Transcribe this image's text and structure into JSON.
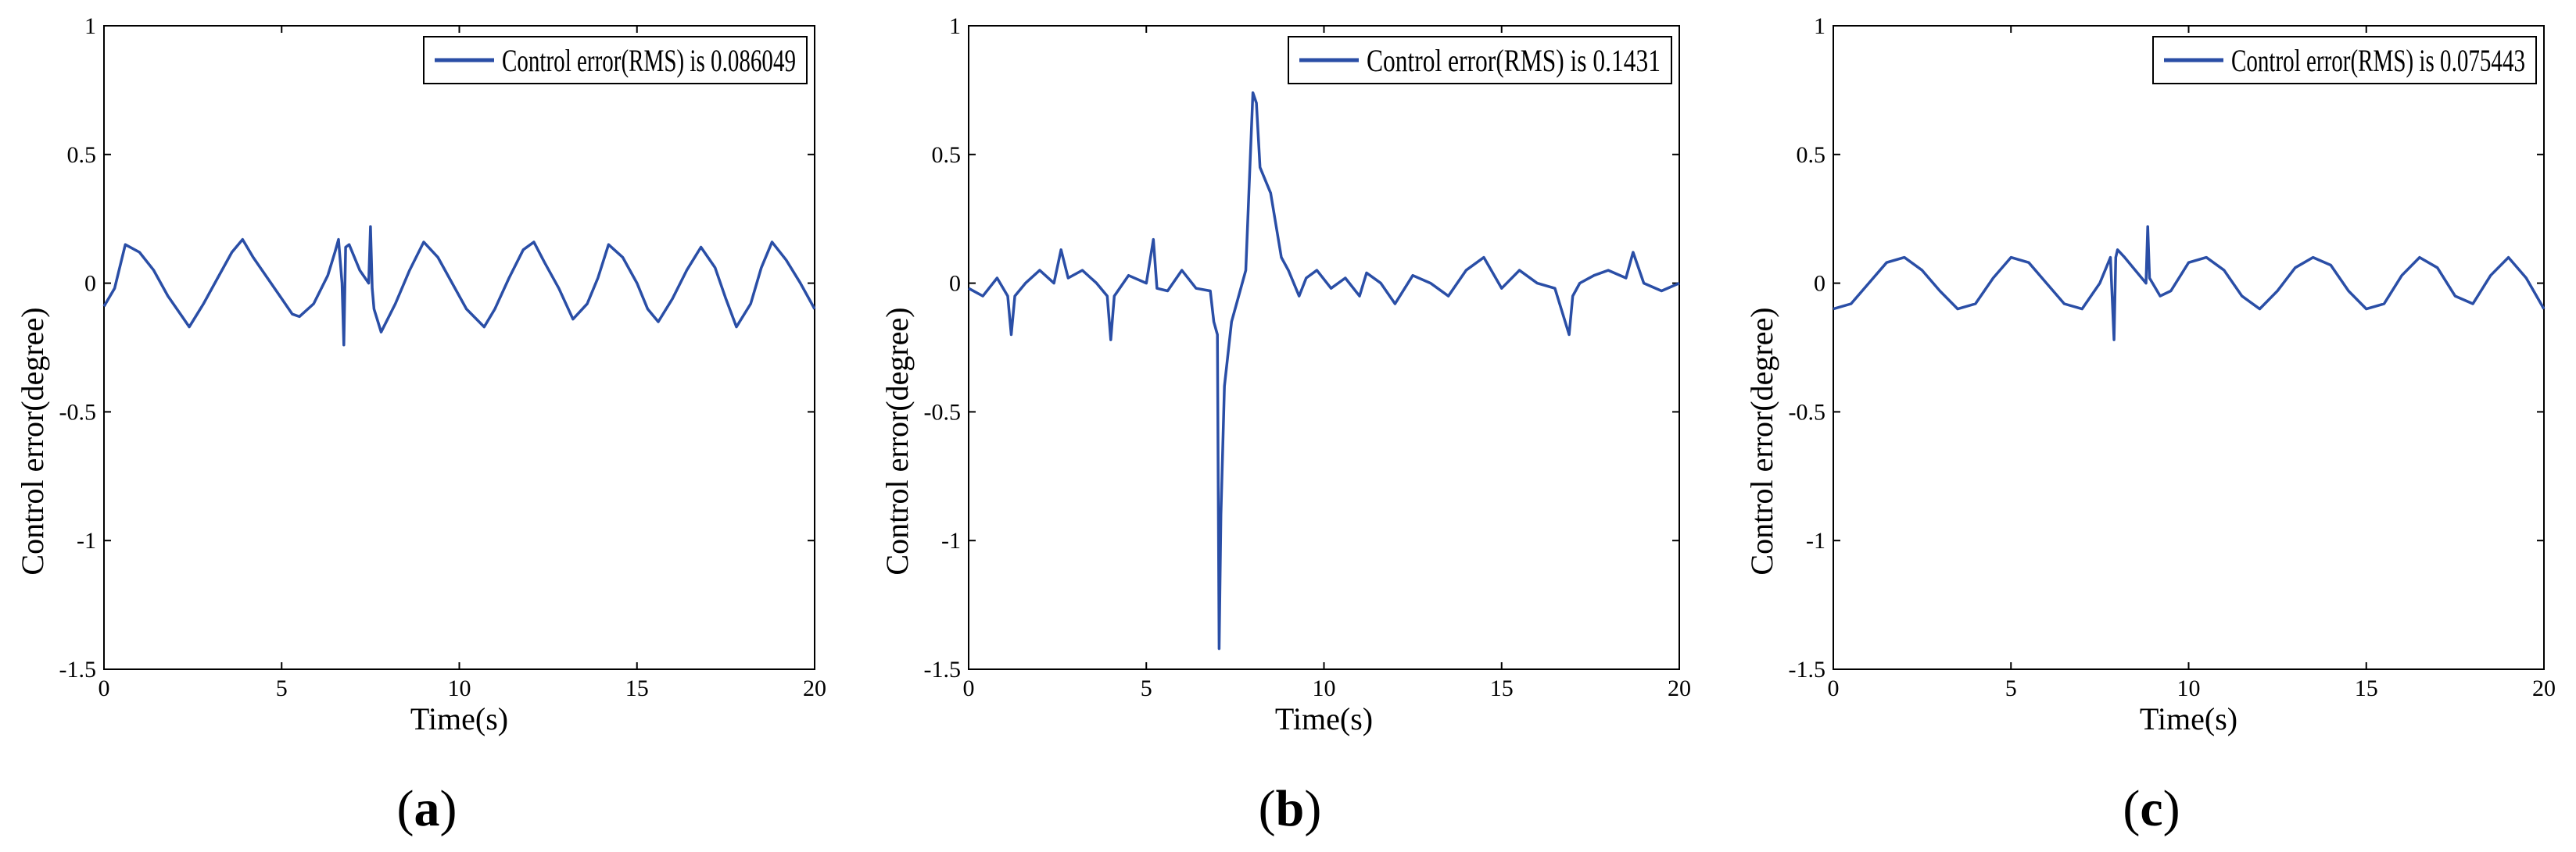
{
  "chart_data": [
    {
      "type": "line",
      "panel_label": "a",
      "xlabel": "Time(s)",
      "ylabel": "Control error(degree)",
      "xlim": [
        0,
        20
      ],
      "ylim": [
        -1.5,
        1
      ],
      "xticks": [
        "0",
        "5",
        "10",
        "15",
        "20"
      ],
      "yticks": [
        "1",
        "0.5",
        "0",
        "-0.5",
        "-1",
        "-1.5"
      ],
      "legend": {
        "label": "Control error(RMS) is 0.086049",
        "placement": "top-right"
      },
      "color": "#2a4ea6",
      "series": [
        {
          "name": "Control error",
          "x": [
            0,
            0.3,
            0.6,
            1.0,
            1.4,
            1.8,
            2.2,
            2.4,
            2.8,
            3.2,
            3.6,
            3.9,
            4.2,
            4.6,
            5.0,
            5.3,
            5.5,
            5.9,
            6.3,
            6.5,
            6.6,
            6.7,
            6.75,
            6.8,
            6.9,
            7.2,
            7.45,
            7.5,
            7.55,
            7.6,
            7.8,
            8.2,
            8.6,
            9.0,
            9.4,
            9.8,
            10.2,
            10.7,
            11.0,
            11.4,
            11.8,
            12.1,
            12.4,
            12.8,
            13.2,
            13.6,
            13.9,
            14.2,
            14.6,
            15.0,
            15.3,
            15.6,
            16.0,
            16.4,
            16.8,
            17.2,
            17.5,
            17.8,
            18.2,
            18.5,
            18.8,
            19.2,
            19.6,
            20.0
          ],
          "y": [
            -0.09,
            -0.02,
            0.15,
            0.12,
            0.05,
            -0.05,
            -0.13,
            -0.17,
            -0.08,
            0.02,
            0.12,
            0.17,
            0.1,
            0.02,
            -0.06,
            -0.12,
            -0.13,
            -0.08,
            0.03,
            0.12,
            0.17,
            0.0,
            -0.24,
            0.14,
            0.15,
            0.05,
            0.0,
            0.22,
            -0.02,
            -0.1,
            -0.19,
            -0.08,
            0.05,
            0.16,
            0.1,
            0.0,
            -0.1,
            -0.17,
            -0.1,
            0.02,
            0.13,
            0.16,
            0.08,
            -0.02,
            -0.14,
            -0.08,
            0.02,
            0.15,
            0.1,
            0.0,
            -0.1,
            -0.15,
            -0.06,
            0.05,
            0.14,
            0.06,
            -0.06,
            -0.17,
            -0.08,
            0.06,
            0.16,
            0.09,
            0.0,
            -0.1
          ]
        }
      ]
    },
    {
      "type": "line",
      "panel_label": "b",
      "xlabel": "Time(s)",
      "ylabel": "Control error(degree)",
      "xlim": [
        0,
        20
      ],
      "ylim": [
        -1.5,
        1
      ],
      "xticks": [
        "0",
        "5",
        "10",
        "15",
        "20"
      ],
      "yticks": [
        "1",
        "0.5",
        "0",
        "-0.5",
        "-1",
        "-1.5"
      ],
      "legend": {
        "label": "Control error(RMS) is 0.1431",
        "placement": "top-right"
      },
      "color": "#2a4ea6",
      "series": [
        {
          "name": "Control error",
          "x": [
            0,
            0.4,
            0.8,
            1.1,
            1.2,
            1.3,
            1.6,
            2.0,
            2.4,
            2.6,
            2.8,
            3.2,
            3.6,
            3.9,
            4.0,
            4.1,
            4.5,
            5.0,
            5.2,
            5.3,
            5.6,
            6.0,
            6.4,
            6.8,
            6.9,
            7.0,
            7.05,
            7.1,
            7.2,
            7.4,
            7.6,
            7.8,
            8.0,
            8.1,
            8.2,
            8.5,
            8.8,
            9.0,
            9.3,
            9.5,
            9.8,
            10.2,
            10.6,
            11.0,
            11.2,
            11.6,
            12.0,
            12.5,
            13.0,
            13.5,
            14.0,
            14.5,
            15.0,
            15.5,
            16.0,
            16.5,
            16.9,
            17.0,
            17.2,
            17.6,
            18.0,
            18.5,
            18.7,
            19.0,
            19.5,
            20.0
          ],
          "y": [
            -0.02,
            -0.05,
            0.02,
            -0.05,
            -0.2,
            -0.05,
            0.0,
            0.05,
            0.0,
            0.13,
            0.02,
            0.05,
            0.0,
            -0.05,
            -0.22,
            -0.05,
            0.03,
            0.0,
            0.17,
            -0.02,
            -0.03,
            0.05,
            -0.02,
            -0.03,
            -0.15,
            -0.2,
            -1.42,
            -0.9,
            -0.4,
            -0.15,
            -0.05,
            0.05,
            0.74,
            0.7,
            0.45,
            0.35,
            0.1,
            0.05,
            -0.05,
            0.02,
            0.05,
            -0.02,
            0.02,
            -0.05,
            0.04,
            0.0,
            -0.08,
            0.03,
            0.0,
            -0.05,
            0.05,
            0.1,
            -0.02,
            0.05,
            0.0,
            -0.02,
            -0.2,
            -0.05,
            0.0,
            0.03,
            0.05,
            0.02,
            0.12,
            0.0,
            -0.03,
            0.0
          ]
        }
      ]
    },
    {
      "type": "line",
      "panel_label": "c",
      "xlabel": "Time(s)",
      "ylabel": "Control error(degree)",
      "xlim": [
        0,
        20
      ],
      "ylim": [
        -1.5,
        1
      ],
      "xticks": [
        "0",
        "5",
        "10",
        "15",
        "20"
      ],
      "yticks": [
        "1",
        "0.5",
        "0",
        "-0.5",
        "-1",
        "-1.5"
      ],
      "legend": {
        "label": "Control error(RMS) is 0.075443",
        "placement": "top-right"
      },
      "color": "#2a4ea6",
      "series": [
        {
          "name": "Control error",
          "x": [
            0,
            0.5,
            1.0,
            1.5,
            2.0,
            2.5,
            3.0,
            3.5,
            4.0,
            4.5,
            5.0,
            5.5,
            6.0,
            6.5,
            7.0,
            7.5,
            7.8,
            7.9,
            7.95,
            8.0,
            8.2,
            8.5,
            8.8,
            8.85,
            8.9,
            9.2,
            9.5,
            10.0,
            10.5,
            11.0,
            11.5,
            12.0,
            12.5,
            13.0,
            13.5,
            14.0,
            14.5,
            15.0,
            15.5,
            16.0,
            16.5,
            17.0,
            17.5,
            18.0,
            18.5,
            19.0,
            19.5,
            20.0
          ],
          "y": [
            -0.1,
            -0.08,
            0.0,
            0.08,
            0.1,
            0.05,
            -0.03,
            -0.1,
            -0.08,
            0.02,
            0.1,
            0.08,
            0.0,
            -0.08,
            -0.1,
            0.0,
            0.1,
            -0.22,
            0.1,
            0.13,
            0.1,
            0.05,
            0.0,
            0.22,
            0.02,
            -0.05,
            -0.03,
            0.08,
            0.1,
            0.05,
            -0.05,
            -0.1,
            -0.03,
            0.06,
            0.1,
            0.07,
            -0.03,
            -0.1,
            -0.08,
            0.03,
            0.1,
            0.06,
            -0.05,
            -0.08,
            0.03,
            0.1,
            0.02,
            -0.1
          ]
        }
      ]
    }
  ]
}
